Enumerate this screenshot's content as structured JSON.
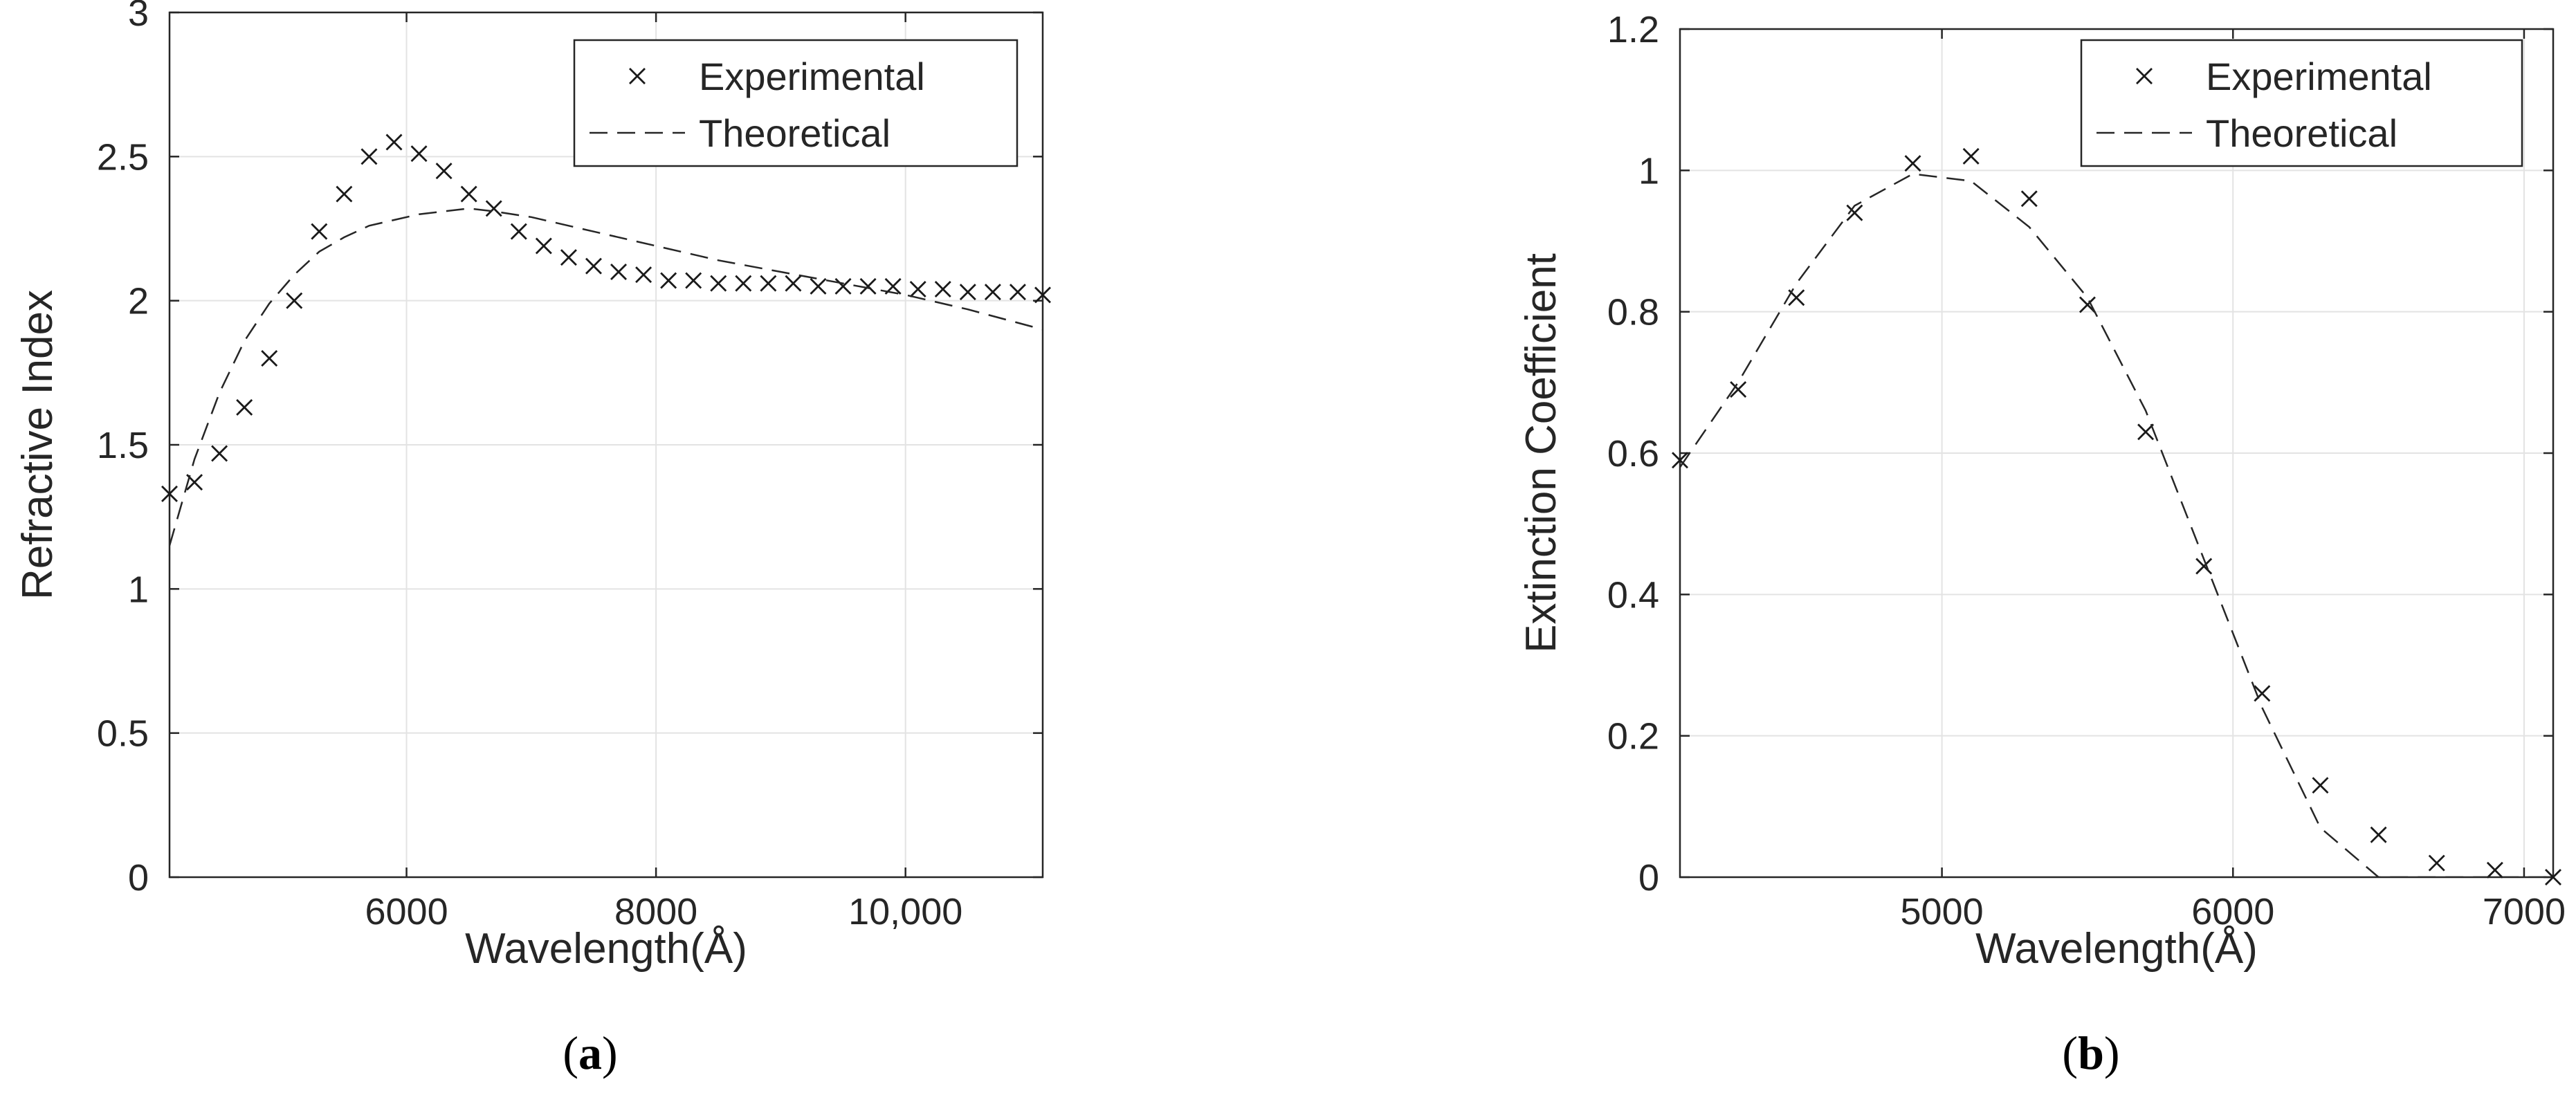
{
  "chart_data": [
    {
      "type": "scatter",
      "panel": "a",
      "caption": {
        "open": "(",
        "letter": "a",
        "close": ")"
      },
      "xlabel": "Wavelength(Å)",
      "ylabel": "Refractive Index",
      "xlim": [
        4100,
        11100
      ],
      "ylim": [
        0,
        3
      ],
      "xticks": [
        6000,
        8000,
        10000
      ],
      "xtick_labels": [
        "6000",
        "8000",
        "10,000"
      ],
      "yticks": [
        0,
        0.5,
        1,
        1.5,
        2,
        2.5,
        3
      ],
      "ytick_labels": [
        "0",
        "0.5",
        "1",
        "1.5",
        "2",
        "2.5",
        "3"
      ],
      "grid": true,
      "legend_position": "top-right",
      "series": [
        {
          "name": "Experimental",
          "style": "marker-x",
          "x": [
            4100,
            4300,
            4500,
            4700,
            4900,
            5100,
            5300,
            5500,
            5700,
            5900,
            6100,
            6300,
            6500,
            6700,
            6900,
            7100,
            7300,
            7500,
            7700,
            7900,
            8100,
            8300,
            8500,
            8700,
            8900,
            9100,
            9300,
            9500,
            9700,
            9900,
            10100,
            10300,
            10500,
            10700,
            10900,
            11100
          ],
          "y": [
            1.33,
            1.37,
            1.47,
            1.63,
            1.8,
            2.0,
            2.24,
            2.37,
            2.5,
            2.55,
            2.51,
            2.45,
            2.37,
            2.32,
            2.24,
            2.19,
            2.15,
            2.12,
            2.1,
            2.09,
            2.07,
            2.07,
            2.06,
            2.06,
            2.06,
            2.06,
            2.05,
            2.05,
            2.05,
            2.05,
            2.04,
            2.04,
            2.03,
            2.03,
            2.03,
            2.02
          ]
        },
        {
          "name": "Theoretical",
          "style": "dashed-line",
          "x": [
            4100,
            4300,
            4500,
            4700,
            4900,
            5100,
            5300,
            5500,
            5700,
            5900,
            6100,
            6300,
            6500,
            6700,
            7000,
            7500,
            8000,
            8500,
            9000,
            9500,
            10000,
            10500,
            11100
          ],
          "y": [
            1.15,
            1.45,
            1.68,
            1.86,
            1.99,
            2.09,
            2.17,
            2.22,
            2.26,
            2.28,
            2.3,
            2.31,
            2.32,
            2.31,
            2.29,
            2.24,
            2.19,
            2.14,
            2.1,
            2.06,
            2.02,
            1.97,
            1.9
          ]
        }
      ]
    },
    {
      "type": "scatter",
      "panel": "b",
      "caption": {
        "open": "(",
        "letter": "b",
        "close": ")"
      },
      "xlabel": "Wavelength(Å)",
      "ylabel": "Extinction Coefficient",
      "xlim": [
        4100,
        7100
      ],
      "ylim": [
        0,
        1.2
      ],
      "xticks": [
        5000,
        6000,
        7000
      ],
      "xtick_labels": [
        "5000",
        "6000",
        "7000"
      ],
      "yticks": [
        0,
        0.2,
        0.4,
        0.6,
        0.8,
        1,
        1.2
      ],
      "ytick_labels": [
        "0",
        "0.2",
        "0.4",
        "0.6",
        "0.8",
        "1",
        "1.2"
      ],
      "grid": true,
      "legend_position": "top-right",
      "series": [
        {
          "name": "Experimental",
          "style": "marker-x",
          "x": [
            4100,
            4300,
            4500,
            4700,
            4900,
            5100,
            5300,
            5500,
            5700,
            5900,
            6100,
            6300,
            6500,
            6700,
            6900,
            7100
          ],
          "y": [
            0.59,
            0.69,
            0.82,
            0.94,
            1.01,
            1.02,
            0.96,
            0.81,
            0.63,
            0.44,
            0.26,
            0.13,
            0.06,
            0.02,
            0.01,
            0.0
          ]
        },
        {
          "name": "Theoretical",
          "style": "dashed-line",
          "x": [
            4100,
            4300,
            4500,
            4700,
            4900,
            5100,
            5300,
            5500,
            5700,
            5900,
            6100,
            6300,
            6500,
            6700,
            6900,
            7100
          ],
          "y": [
            0.58,
            0.7,
            0.84,
            0.95,
            0.995,
            0.985,
            0.92,
            0.82,
            0.66,
            0.45,
            0.24,
            0.07,
            0.0,
            0.0,
            0.0,
            0.0
          ]
        }
      ]
    }
  ]
}
